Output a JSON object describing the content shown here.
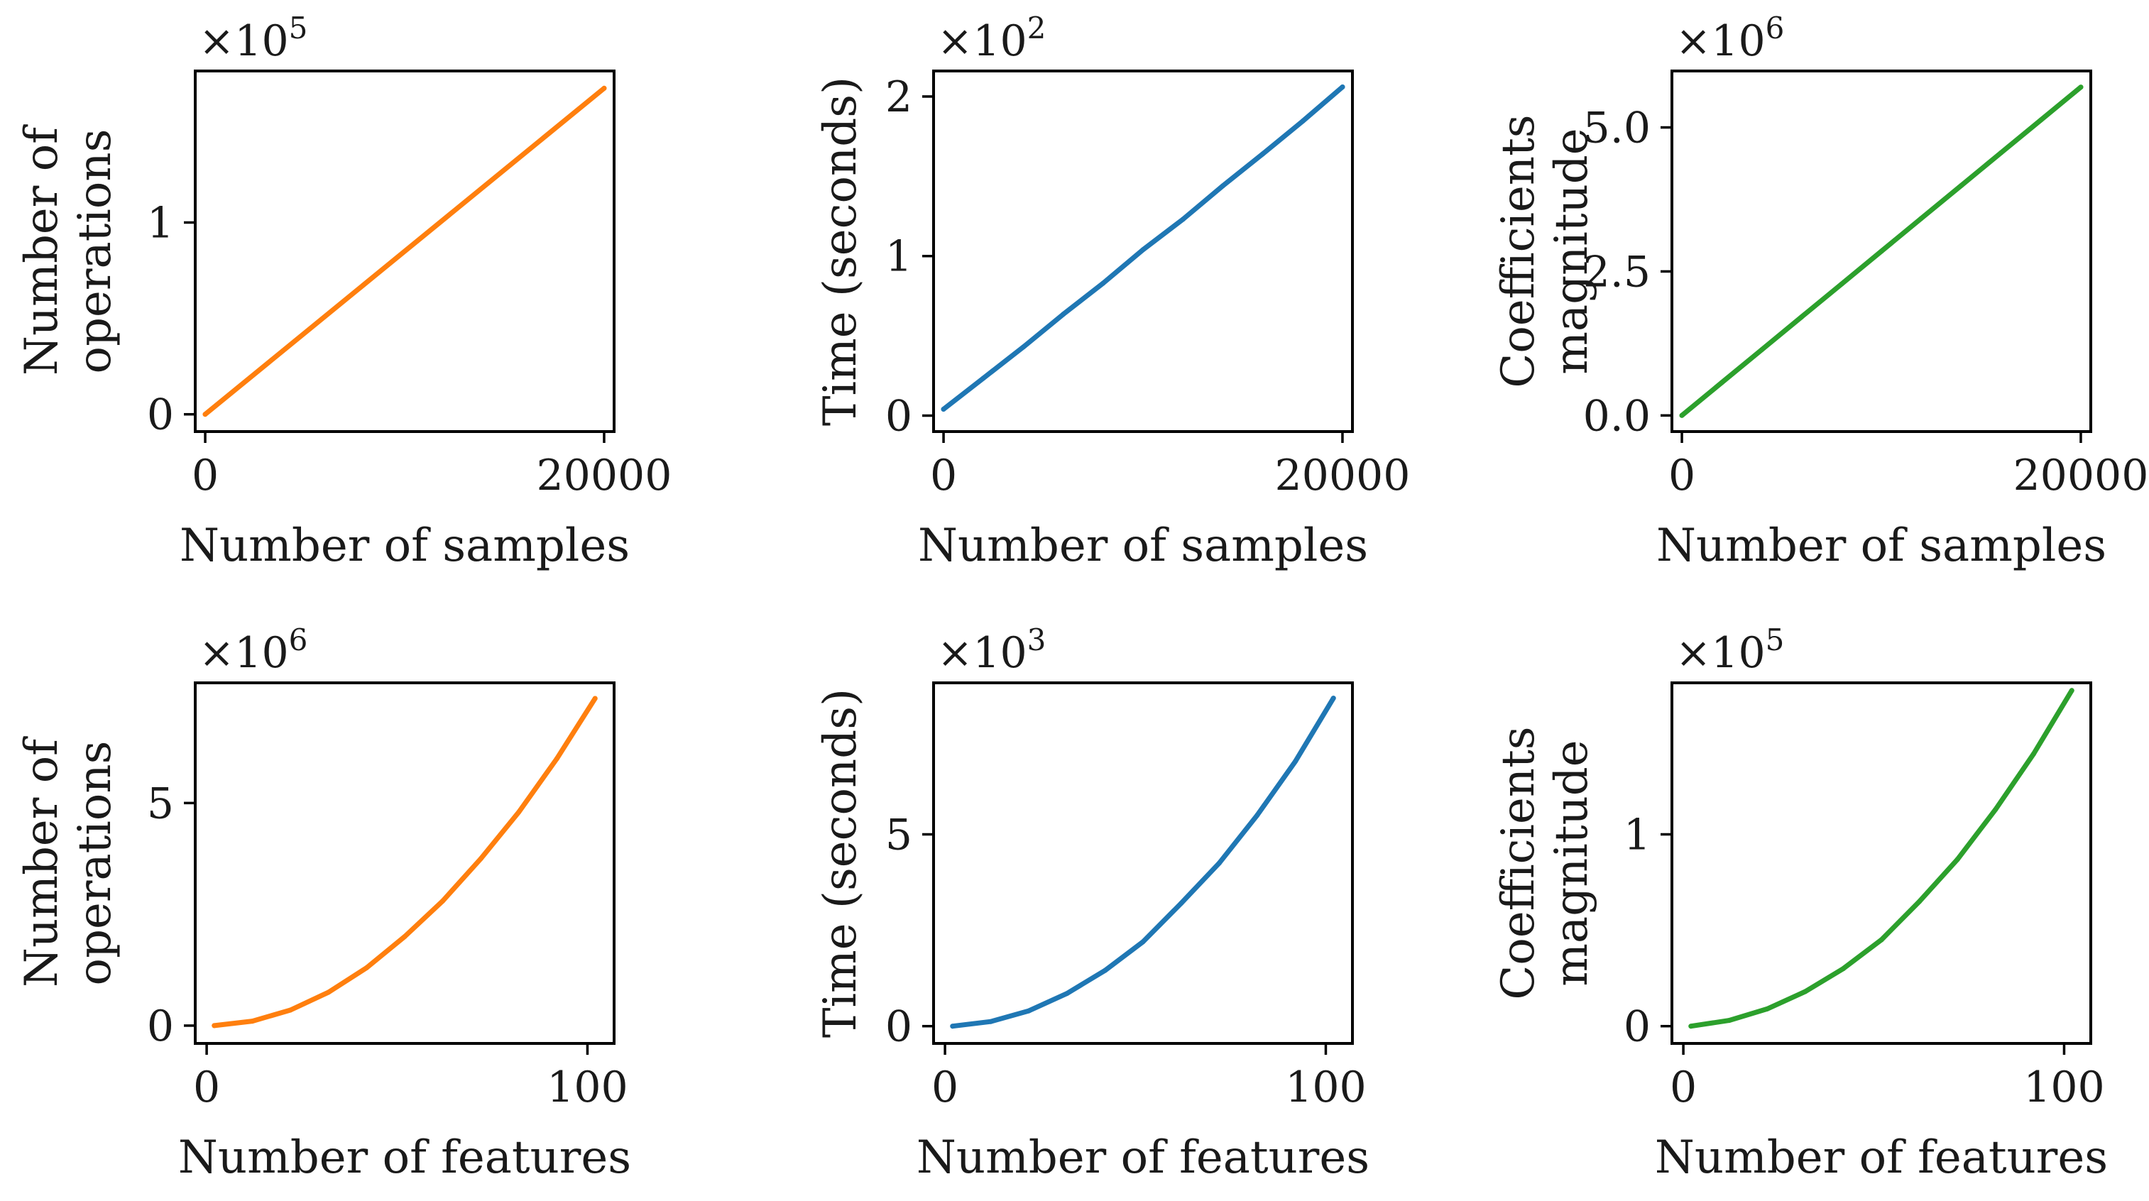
{
  "chart_data": [
    {
      "type": "line",
      "panel": "top-left",
      "color": "#ff7f0e",
      "xlabel": "Number of samples",
      "ylabel_lines": [
        "Number of",
        "operations"
      ],
      "offset": {
        "base": "×10",
        "exp": "5"
      },
      "xlim": [
        -500,
        20500
      ],
      "ylim": [
        -0.09,
        1.79
      ],
      "xticks": [
        0,
        20000
      ],
      "xtick_labels": [
        "0",
        "20000"
      ],
      "yticks": [
        0,
        1
      ],
      "ytick_labels": [
        "0",
        "1"
      ],
      "x": [
        0,
        20000
      ],
      "y": [
        0.0,
        1.7
      ]
    },
    {
      "type": "line",
      "panel": "top-middle",
      "color": "#1f77b4",
      "xlabel": "Number of samples",
      "ylabel_lines": [
        "Time (seconds)"
      ],
      "offset": {
        "base": "×10",
        "exp": "2"
      },
      "xlim": [
        -500,
        20500
      ],
      "ylim": [
        -0.1,
        2.16
      ],
      "xticks": [
        0,
        20000
      ],
      "xtick_labels": [
        "0",
        "20000"
      ],
      "yticks": [
        0,
        1,
        2
      ],
      "ytick_labels": [
        "0",
        "1",
        "2"
      ],
      "x": [
        0,
        2000,
        4000,
        6000,
        8000,
        10000,
        12000,
        14000,
        16000,
        18000,
        20000
      ],
      "y": [
        0.04,
        0.235,
        0.43,
        0.635,
        0.83,
        1.04,
        1.23,
        1.44,
        1.64,
        1.845,
        2.06
      ]
    },
    {
      "type": "line",
      "panel": "top-right",
      "color": "#2ca02c",
      "xlabel": "Number of samples",
      "ylabel_lines": [
        "Coefficients",
        "magnitude"
      ],
      "offset": {
        "base": "×10",
        "exp": "6"
      },
      "xlim": [
        -500,
        20500
      ],
      "ylim": [
        -0.28,
        5.98
      ],
      "xticks": [
        0,
        20000
      ],
      "xtick_labels": [
        "0",
        "20000"
      ],
      "yticks": [
        0,
        2.5,
        5.0
      ],
      "ytick_labels": [
        "0.0",
        "2.5",
        "5.0"
      ],
      "x": [
        0,
        2000,
        4000,
        6000,
        8000,
        10000,
        12000,
        14000,
        16000,
        18000,
        20000
      ],
      "y": [
        0.0,
        0.57,
        1.14,
        1.71,
        2.28,
        2.85,
        3.42,
        3.99,
        4.56,
        5.13,
        5.7
      ]
    },
    {
      "type": "line",
      "panel": "bottom-left",
      "color": "#ff7f0e",
      "xlabel": "Number of features",
      "ylabel_lines": [
        "Number of",
        "operations"
      ],
      "offset": {
        "base": "×10",
        "exp": "6"
      },
      "xlim": [
        -3,
        107
      ],
      "ylim": [
        -0.4,
        7.7
      ],
      "xticks": [
        0,
        100
      ],
      "xtick_labels": [
        "0",
        "100"
      ],
      "yticks": [
        0,
        5
      ],
      "ytick_labels": [
        "0",
        "5"
      ],
      "x": [
        2,
        12,
        22,
        32,
        42,
        52,
        62,
        72,
        82,
        92,
        102
      ],
      "y": [
        0.0,
        0.1,
        0.35,
        0.75,
        1.3,
        2.0,
        2.8,
        3.75,
        4.8,
        6.0,
        7.35
      ]
    },
    {
      "type": "line",
      "panel": "bottom-middle",
      "color": "#1f77b4",
      "xlabel": "Number of features",
      "ylabel_lines": [
        "Time (seconds)"
      ],
      "offset": {
        "base": "×10",
        "exp": "3"
      },
      "xlim": [
        -3,
        107
      ],
      "ylim": [
        -0.45,
        8.95
      ],
      "xticks": [
        0,
        100
      ],
      "xtick_labels": [
        "0",
        "100"
      ],
      "yticks": [
        0,
        5
      ],
      "ytick_labels": [
        "0",
        "5"
      ],
      "x": [
        2,
        12,
        22,
        32,
        42,
        52,
        62,
        72,
        82,
        92,
        102
      ],
      "y": [
        0.0,
        0.12,
        0.4,
        0.85,
        1.45,
        2.2,
        3.2,
        4.25,
        5.5,
        6.9,
        8.55
      ]
    },
    {
      "type": "line",
      "panel": "bottom-right",
      "color": "#2ca02c",
      "xlabel": "Number of features",
      "ylabel_lines": [
        "Coefficients",
        "magnitude"
      ],
      "offset": {
        "base": "×10",
        "exp": "5"
      },
      "xlim": [
        -3,
        107
      ],
      "ylim": [
        -0.09,
        1.79
      ],
      "xticks": [
        0,
        100
      ],
      "xtick_labels": [
        "0",
        "100"
      ],
      "yticks": [
        0,
        1
      ],
      "ytick_labels": [
        "0",
        "1"
      ],
      "x": [
        2,
        12,
        22,
        32,
        42,
        52,
        62,
        72,
        82,
        92,
        102
      ],
      "y": [
        0.0,
        0.03,
        0.09,
        0.18,
        0.3,
        0.45,
        0.65,
        0.87,
        1.13,
        1.42,
        1.75
      ]
    }
  ]
}
